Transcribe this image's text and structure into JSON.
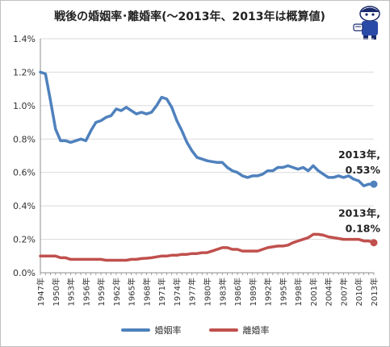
{
  "chart_data": {
    "type": "line",
    "title": "戦後の婚姻率･離婚率(～2013年、2013年は概算値)",
    "xlabel": "",
    "ylabel": "",
    "ylim": [
      0,
      1.4
    ],
    "yticks": [
      "0.0%",
      "0.2%",
      "0.4%",
      "0.6%",
      "0.8%",
      "1.0%",
      "1.2%",
      "1.4%"
    ],
    "x_tick_labels": [
      "1947年",
      "1950年",
      "1953年",
      "1956年",
      "1959年",
      "1962年",
      "1965年",
      "1968年",
      "1971年",
      "1974年",
      "1977年",
      "1980年",
      "1983年",
      "1986年",
      "1989年",
      "1992年",
      "1995年",
      "1998年",
      "2001年",
      "2004年",
      "2007年",
      "2010年",
      "2013年"
    ],
    "x": [
      1947,
      1948,
      1949,
      1950,
      1951,
      1952,
      1953,
      1954,
      1955,
      1956,
      1957,
      1958,
      1959,
      1960,
      1961,
      1962,
      1963,
      1964,
      1965,
      1966,
      1967,
      1968,
      1969,
      1970,
      1971,
      1972,
      1973,
      1974,
      1975,
      1976,
      1977,
      1978,
      1979,
      1980,
      1981,
      1982,
      1983,
      1984,
      1985,
      1986,
      1987,
      1988,
      1989,
      1990,
      1991,
      1992,
      1993,
      1994,
      1995,
      1996,
      1997,
      1998,
      1999,
      2000,
      2001,
      2002,
      2003,
      2004,
      2005,
      2006,
      2007,
      2008,
      2009,
      2010,
      2011,
      2012,
      2013
    ],
    "series": [
      {
        "name": "婚姻率",
        "color": "#4f81bd",
        "values": [
          1.2,
          1.19,
          1.03,
          0.86,
          0.79,
          0.79,
          0.78,
          0.79,
          0.8,
          0.79,
          0.85,
          0.9,
          0.91,
          0.93,
          0.94,
          0.98,
          0.97,
          0.99,
          0.97,
          0.95,
          0.96,
          0.95,
          0.96,
          1.0,
          1.05,
          1.04,
          0.99,
          0.91,
          0.85,
          0.78,
          0.73,
          0.69,
          0.68,
          0.67,
          0.665,
          0.66,
          0.66,
          0.63,
          0.61,
          0.6,
          0.58,
          0.57,
          0.58,
          0.58,
          0.59,
          0.61,
          0.61,
          0.63,
          0.63,
          0.64,
          0.63,
          0.62,
          0.63,
          0.61,
          0.64,
          0.61,
          0.59,
          0.57,
          0.57,
          0.58,
          0.57,
          0.58,
          0.56,
          0.55,
          0.52,
          0.53,
          0.53
        ]
      },
      {
        "name": "離婚率",
        "color": "#c0504d",
        "values": [
          0.1,
          0.1,
          0.1,
          0.1,
          0.09,
          0.09,
          0.08,
          0.08,
          0.08,
          0.08,
          0.08,
          0.08,
          0.08,
          0.075,
          0.075,
          0.075,
          0.075,
          0.075,
          0.08,
          0.08,
          0.085,
          0.087,
          0.09,
          0.095,
          0.1,
          0.1,
          0.105,
          0.105,
          0.11,
          0.11,
          0.115,
          0.115,
          0.12,
          0.12,
          0.13,
          0.14,
          0.15,
          0.15,
          0.14,
          0.14,
          0.13,
          0.13,
          0.13,
          0.13,
          0.14,
          0.15,
          0.155,
          0.16,
          0.16,
          0.165,
          0.18,
          0.19,
          0.2,
          0.21,
          0.23,
          0.23,
          0.225,
          0.215,
          0.21,
          0.205,
          0.2,
          0.2,
          0.2,
          0.2,
          0.19,
          0.19,
          0.18
        ]
      }
    ],
    "annotations": [
      {
        "series": 0,
        "lines": [
          "2013年,",
          "0.53%"
        ]
      },
      {
        "series": 1,
        "lines": [
          "2013年,",
          "0.18%"
        ]
      }
    ],
    "grid": true,
    "legend": "bottom"
  }
}
